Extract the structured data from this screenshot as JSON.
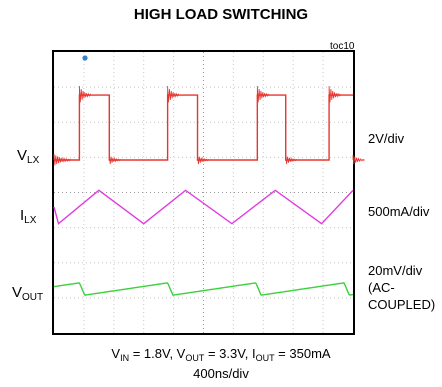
{
  "chart_data": {
    "type": "line",
    "title": "HIGH LOAD SWITCHING",
    "figure_id": "toc10",
    "timebase": "400ns/div",
    "conditions": [
      {
        "symbol": "V",
        "sub": "IN",
        "value": " = 1.8V, "
      },
      {
        "symbol": "V",
        "sub": "OUT",
        "value": " = 3.3V, "
      },
      {
        "symbol": "I",
        "sub": "OUT",
        "value": " = 350mA"
      }
    ],
    "grid": {
      "divisions_x": 10,
      "divisions_y": 8,
      "dotted": true
    },
    "trigger_marker_color": "#3a7fd0",
    "channels": [
      {
        "label_main": "V",
        "label_sub": "LX",
        "scale": "2V/div",
        "color": "#e8352f",
        "waveform": "square",
        "levels_div": [
          0,
          1.85
        ],
        "edges_div": [
          0.85,
          1.85,
          3.8,
          4.8,
          6.8,
          7.75,
          9.2,
          10
        ]
      },
      {
        "label_main": "I",
        "label_sub": "LX",
        "scale": "500mA/div",
        "color": "#e03ce0",
        "waveform": "triangle",
        "amplitude_div": 0.95,
        "peaks_div": [
          1.5,
          4.4,
          7.4,
          10.3
        ],
        "troughs_div": [
          0.15,
          3.0,
          5.95,
          8.95
        ]
      },
      {
        "label_main": "V",
        "label_sub": "OUT",
        "scale_lines": [
          "20mV/div",
          "(AC-",
          "COUPLED)"
        ],
        "color": "#3ad13a",
        "waveform": "sawtooth",
        "amplitude_div": 0.35,
        "period_div": 2.95,
        "phase_div": 0.85
      }
    ]
  }
}
